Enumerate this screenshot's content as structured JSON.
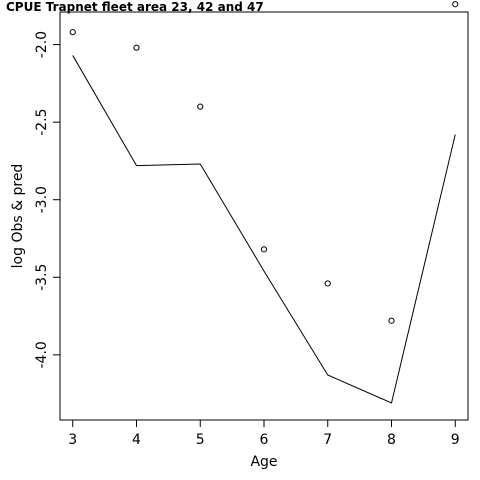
{
  "chart_data": {
    "type": "line",
    "title": "CPUE Trapnet fleet area 23, 42 and 47",
    "xlabel": "Age",
    "ylabel": "log Obs & pred",
    "xlim": [
      2.8,
      9.2
    ],
    "ylim": [
      -4.42,
      -1.79
    ],
    "x_ticks": [
      3,
      4,
      5,
      6,
      7,
      8,
      9
    ],
    "x_tick_labels": [
      "3",
      "4",
      "5",
      "6",
      "7",
      "8",
      "9"
    ],
    "y_ticks": [
      -4.0,
      -3.5,
      -3.0,
      -2.5,
      -2.0
    ],
    "y_tick_labels": [
      "-4.0",
      "-3.5",
      "-3.0",
      "-2.5",
      "-2.0"
    ],
    "grid": false,
    "legend": "none",
    "series": [
      {
        "role": "observed",
        "style": "points",
        "x": [
          3,
          4,
          5,
          6,
          7,
          8,
          9
        ],
        "y": [
          -1.92,
          -2.02,
          -2.4,
          -3.32,
          -3.54,
          -3.78,
          -1.74
        ]
      },
      {
        "role": "predicted",
        "style": "line",
        "x": [
          3,
          4,
          5,
          6,
          7,
          8,
          9
        ],
        "y": [
          -2.07,
          -2.78,
          -2.77,
          -3.46,
          -4.13,
          -4.31,
          -2.58
        ]
      }
    ]
  }
}
